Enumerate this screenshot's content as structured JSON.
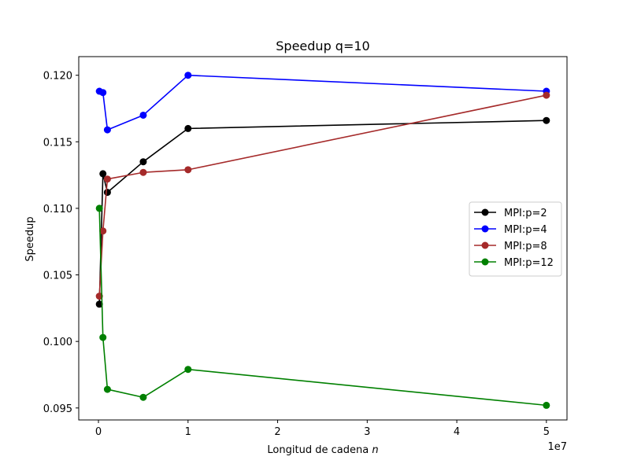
{
  "chart_data": {
    "type": "line",
    "title": "Speedup q=10",
    "xlabel_prefix": "Longitud de cadena ",
    "xlabel_var": "n",
    "ylabel": "Speedup",
    "x_offset_text": "1e7",
    "xlim": [
      -2200000,
      52300000
    ],
    "ylim": [
      0.0941,
      0.1214
    ],
    "x_ticks": [
      0,
      10000000,
      20000000,
      30000000,
      40000000,
      50000000
    ],
    "x_tick_labels": [
      "0",
      "1",
      "2",
      "3",
      "4",
      "5"
    ],
    "y_ticks": [
      0.095,
      0.1,
      0.105,
      0.11,
      0.115,
      0.12
    ],
    "y_tick_labels": [
      "0.095",
      "0.100",
      "0.105",
      "0.110",
      "0.115",
      "0.120"
    ],
    "grid": false,
    "legend_position": "right",
    "x": [
      100000,
      500000,
      1000000,
      5000000,
      10000000,
      50000000
    ],
    "series": [
      {
        "name": "MPI:p=2",
        "color": "#000000",
        "values": [
          0.1028,
          0.1126,
          0.1112,
          0.1135,
          0.116,
          0.1166
        ]
      },
      {
        "name": "MPI:p=4",
        "color": "#0000ff",
        "values": [
          0.1188,
          0.1187,
          0.1159,
          0.117,
          0.12,
          0.1188
        ]
      },
      {
        "name": "MPI:p=8",
        "color": "#a52a2a",
        "values": [
          0.1034,
          0.1083,
          0.1122,
          0.1127,
          0.1129,
          0.1185
        ]
      },
      {
        "name": "MPI:p=12",
        "color": "#008000",
        "values": [
          0.11,
          0.1003,
          0.0964,
          0.0958,
          0.0979,
          0.0952
        ]
      }
    ]
  }
}
